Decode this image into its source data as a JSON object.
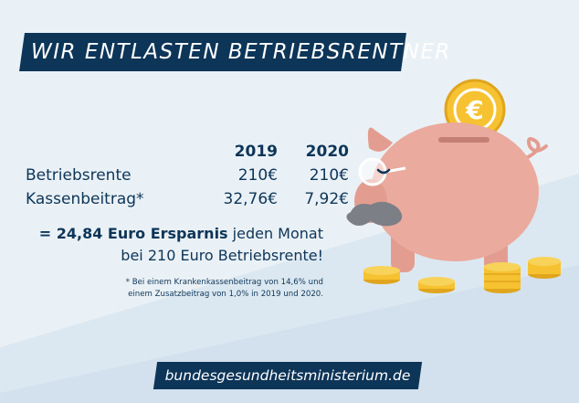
{
  "title": "WIR ENTLASTEN BETRIEBSRENTNER",
  "table": {
    "col_2019": "2019",
    "col_2020": "2020",
    "rows": [
      {
        "label": "Betriebsrente",
        "v2019": "210€",
        "v2020": "210€"
      },
      {
        "label": "Kassenbeitrag*",
        "v2019": "32,76€",
        "v2020": "7,92€"
      }
    ]
  },
  "savings": {
    "prefix": "= 24,84 Euro Ersparnis",
    "middle": " jeden Monat",
    "line2": "bei 210 Euro Betriebsrente!"
  },
  "footnote": {
    "line1": "* Bei einem Krankenkassenbeitrag von 14,6% und",
    "line2": "einem Zusatzbeitrag von 1,0% in 2019 und 2020."
  },
  "url": "bundesgesundheitsministerium.de",
  "coin_symbol": "€",
  "colors": {
    "navy": "#0d3558",
    "background": "#eaf1f6",
    "pig": "#eaaa9e",
    "coin": "#f6c231"
  },
  "icons": [
    "piggy-bank-icon",
    "euro-coin-icon",
    "coin-stack-icon",
    "glasses-icon",
    "mustache-icon"
  ]
}
